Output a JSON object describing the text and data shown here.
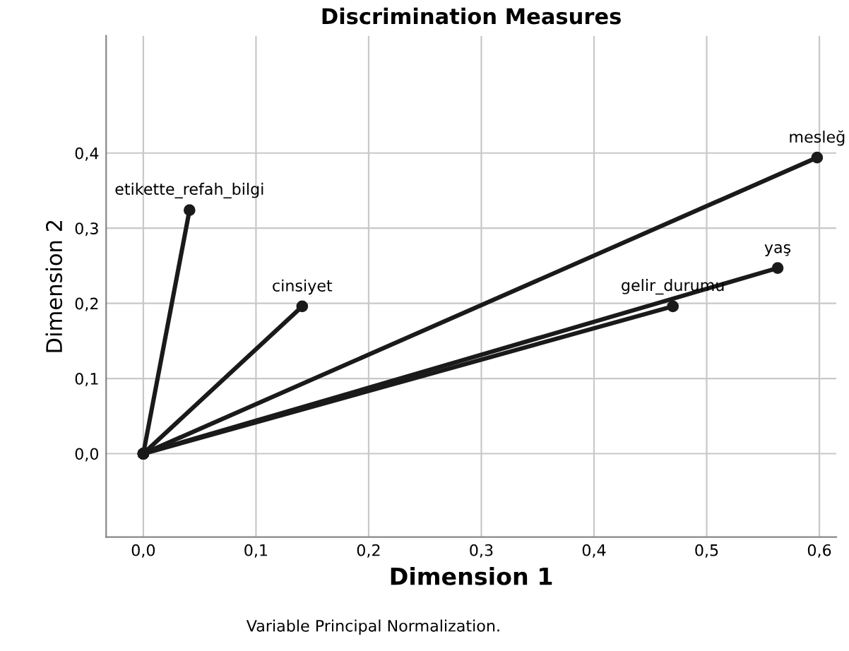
{
  "chart_data": {
    "type": "line",
    "title": "Discrimination Measures",
    "xlabel": "Dimension 1",
    "ylabel": "Dimension 2",
    "xlim": [
      -0.033,
      0.615
    ],
    "ylim": [
      -0.111,
      0.556
    ],
    "xticks": [
      {
        "value": 0,
        "label": "0,0"
      },
      {
        "value": 0.1,
        "label": "0,1"
      },
      {
        "value": 0.2,
        "label": "0,2"
      },
      {
        "value": 0.3,
        "label": "0,3"
      },
      {
        "value": 0.4,
        "label": "0,4"
      },
      {
        "value": 0.5,
        "label": "0,5"
      },
      {
        "value": 0.6,
        "label": "0,6"
      }
    ],
    "yticks": [
      {
        "value": 0,
        "label": "0,0"
      },
      {
        "value": 0.1,
        "label": "0,1"
      },
      {
        "value": 0.2,
        "label": "0,2"
      },
      {
        "value": 0.3,
        "label": "0,3"
      },
      {
        "value": 0.4,
        "label": "0,4"
      }
    ],
    "grid": true,
    "marker": "circle",
    "line_style": "solid",
    "series": [
      {
        "name": "etikette_refah_bilgi",
        "color": "#1a1a1a",
        "x": [
          0,
          0.041
        ],
        "values": [
          0,
          0.324
        ]
      },
      {
        "name": "cinsiyet",
        "color": "#1a1a1a",
        "x": [
          0,
          0.141
        ],
        "values": [
          0,
          0.196
        ]
      },
      {
        "name": "mesleğ",
        "color": "#1a1a1a",
        "x": [
          0,
          0.598
        ],
        "values": [
          0,
          0.394
        ]
      },
      {
        "name": "yaş",
        "color": "#1a1a1a",
        "x": [
          0,
          0.563
        ],
        "values": [
          0,
          0.247
        ]
      },
      {
        "name": "gelir_durumu",
        "color": "#1a1a1a",
        "x": [
          0,
          0.47
        ],
        "values": [
          0,
          0.196
        ]
      }
    ],
    "annotations": [
      "Variable Principal Normalization."
    ]
  }
}
